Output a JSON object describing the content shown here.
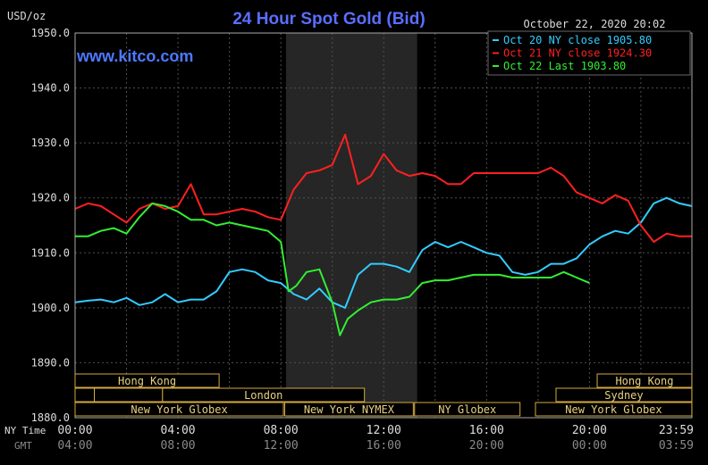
{
  "chart_data": {
    "type": "line",
    "title": "24 Hour Spot Gold (Bid)",
    "unit_label": "USD/oz",
    "timestamp": "October 22, 2020 20:02",
    "brand": "www.kitco.com",
    "ylim": [
      1880,
      1950
    ],
    "y_ticks": [
      "1950.0",
      "1940.0",
      "1930.0",
      "1920.0",
      "1910.0",
      "1900.0",
      "1890.0",
      "1880.0"
    ],
    "x_label_ny": "NY Time",
    "x_label_gmt": "GMT",
    "x_ticks_ny": [
      "00:00",
      "04:00",
      "08:00",
      "12:00",
      "16:00",
      "20:00",
      "23:59"
    ],
    "x_ticks_gmt": [
      "04:00",
      "08:00",
      "12:00",
      "16:00",
      "20:00",
      "00:00",
      "03:59"
    ],
    "x_hours": [
      0,
      4,
      8,
      12,
      16,
      20,
      23.983
    ],
    "shaded_hours": [
      8.2,
      13.3
    ],
    "grid": true,
    "legend_position": "top-right",
    "series": [
      {
        "name": "Oct 20 NY close 1905.80",
        "color": "#33ccff",
        "x": [
          0,
          0.5,
          1.0,
          1.5,
          2.0,
          2.5,
          3.0,
          3.5,
          4.0,
          4.5,
          5.0,
          5.5,
          6.0,
          6.5,
          7.0,
          7.5,
          8.0,
          8.5,
          9.0,
          9.5,
          10.0,
          10.5,
          11.0,
          11.5,
          12.0,
          12.5,
          13.0,
          13.5,
          14.0,
          14.5,
          15.0,
          15.5,
          16.0,
          16.5,
          17.0,
          17.5,
          18.0,
          18.5,
          19.0,
          19.5,
          20.0,
          20.5,
          21.0,
          21.5,
          22.0,
          22.5,
          23.0,
          23.5,
          23.98
        ],
        "values": [
          1901,
          1901.3,
          1901.5,
          1901,
          1901.8,
          1900.5,
          1901,
          1902.5,
          1901,
          1901.5,
          1901.5,
          1903,
          1906.5,
          1907,
          1906.5,
          1905,
          1904.5,
          1902.5,
          1901.5,
          1903.5,
          1901,
          1900,
          1906,
          1908,
          1908,
          1907.5,
          1906.5,
          1910.5,
          1912,
          1911,
          1912,
          1911,
          1910,
          1909.5,
          1906.5,
          1906,
          1906.5,
          1908,
          1908,
          1909,
          1911.5,
          1913,
          1914,
          1913.5,
          1915.5,
          1919,
          1920,
          1919,
          1918.5
        ]
      },
      {
        "name": "Oct 21 NY close 1924.30",
        "color": "#ff2020",
        "x": [
          0,
          0.5,
          1.0,
          1.5,
          2.0,
          2.5,
          3.0,
          3.5,
          4.0,
          4.5,
          5.0,
          5.5,
          6.0,
          6.5,
          7.0,
          7.5,
          8.0,
          8.5,
          9.0,
          9.5,
          10.0,
          10.5,
          11.0,
          11.5,
          12.0,
          12.5,
          13.0,
          13.5,
          14.0,
          14.5,
          15.0,
          15.5,
          16.0,
          16.5,
          17.0,
          17.5,
          18.0,
          18.5,
          19.0,
          19.5,
          20.0,
          20.5,
          21.0,
          21.5,
          22.0,
          22.5,
          23.0,
          23.5,
          23.98
        ],
        "values": [
          1918,
          1919,
          1918.5,
          1917,
          1915.5,
          1918,
          1919,
          1918,
          1918.5,
          1922.5,
          1917,
          1917,
          1917.5,
          1918,
          1917.5,
          1916.5,
          1916,
          1921.5,
          1924.5,
          1925,
          1926,
          1931.5,
          1922.5,
          1924,
          1928,
          1925,
          1924,
          1924.5,
          1924,
          1922.5,
          1922.5,
          1924.5,
          1924.5,
          1924.5,
          1924.5,
          1924.5,
          1924.5,
          1925.5,
          1924,
          1921,
          1920,
          1919,
          1920.5,
          1919.5,
          1915,
          1912,
          1913.5,
          1913,
          1913
        ]
      },
      {
        "name": "Oct 22 Last 1903.80",
        "color": "#33ee33",
        "x": [
          0,
          0.5,
          1.0,
          1.5,
          2.0,
          2.5,
          3.0,
          3.5,
          4.0,
          4.5,
          5.0,
          5.5,
          6.0,
          6.5,
          7.0,
          7.5,
          8.0,
          8.3,
          8.6,
          9.0,
          9.5,
          10.0,
          10.3,
          10.6,
          11.0,
          11.5,
          12.0,
          12.5,
          13.0,
          13.5,
          14.0,
          14.5,
          15.0,
          15.5,
          16.0,
          16.5,
          17.0,
          17.5,
          18.0,
          18.5,
          19.0,
          19.5,
          20.0
        ],
        "values": [
          1913,
          1913,
          1914,
          1914.5,
          1913.5,
          1916.5,
          1919,
          1918.5,
          1917.5,
          1916,
          1916,
          1915,
          1915.5,
          1915,
          1914.5,
          1914,
          1912,
          1903,
          1904,
          1906.5,
          1907,
          1901,
          1895,
          1898,
          1899.5,
          1901,
          1901.5,
          1901.5,
          1902,
          1904.5,
          1905,
          1905,
          1905.5,
          1906,
          1906,
          1906,
          1905.5,
          1905.5,
          1905.5,
          1905.5,
          1906.5,
          1905.5,
          1904.5
        ]
      }
    ],
    "sessions": [
      {
        "label": "Hong Kong",
        "start": 0,
        "end": 5.6,
        "row": 1
      },
      {
        "label": "Hong Kong",
        "start": 20.3,
        "end": 23.98,
        "row": 1
      },
      {
        "label": "",
        "start": 0,
        "end": 0.75,
        "row": 2
      },
      {
        "label": "",
        "start": 0.75,
        "end": 3.4,
        "row": 2
      },
      {
        "label": "London",
        "start": 3.4,
        "end": 11.25,
        "row": 2
      },
      {
        "label": "Sydney",
        "start": 18.7,
        "end": 23.98,
        "row": 2
      },
      {
        "label": "New York Globex",
        "start": 0,
        "end": 8.1,
        "row": 3
      },
      {
        "label": "New York NYMEX",
        "start": 8.15,
        "end": 13.15,
        "row": 3
      },
      {
        "label": "NY Globex",
        "start": 13.2,
        "end": 17.3,
        "row": 3
      },
      {
        "label": "New York Globex",
        "start": 17.9,
        "end": 23.98,
        "row": 3
      }
    ],
    "colors": {
      "background": "#000000",
      "plot_border": "#aaaaaa",
      "grid": "#505050",
      "title": "#5a6eff",
      "brand": "#4d79ff",
      "axis_text": "#dddddd",
      "gmt_text": "#8a8a8a",
      "shade": "#262626",
      "session_border": "#d4aa40",
      "session_text": "#e8d080"
    }
  }
}
